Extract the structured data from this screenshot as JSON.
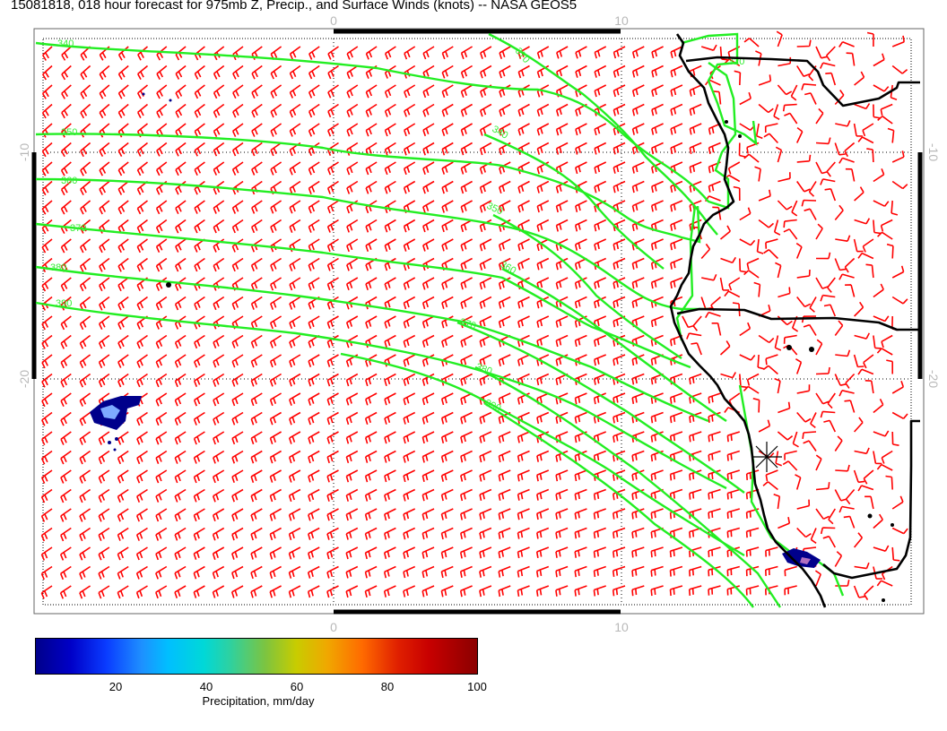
{
  "title": "15081818, 018 hour forecast for 975mb Z, Precip., and Surface Winds (knots) -- NASA GEOS5",
  "axes": {
    "top_labels": [
      "0",
      "10"
    ],
    "bottom_labels": [
      "0",
      "10"
    ],
    "left_labels": [
      "-10",
      "-20"
    ],
    "right_labels": [
      "-10",
      "-20"
    ]
  },
  "contours": {
    "color": "#22ee22",
    "labels": [
      "340",
      "350",
      "360",
      "370",
      "380",
      "390",
      "370",
      "340",
      "350",
      "360",
      "370",
      "380",
      "390",
      "320"
    ]
  },
  "colors": {
    "wind_barbs": "#ff0000",
    "coastline": "#000000",
    "contour": "#22ee22",
    "grid": "#000000",
    "precip_low": "#00008b",
    "precip_mid": "#b0d0ff"
  },
  "colorbar": {
    "labels": [
      "20",
      "40",
      "60",
      "80",
      "100"
    ],
    "title": "Precipitation, mm/day"
  }
}
